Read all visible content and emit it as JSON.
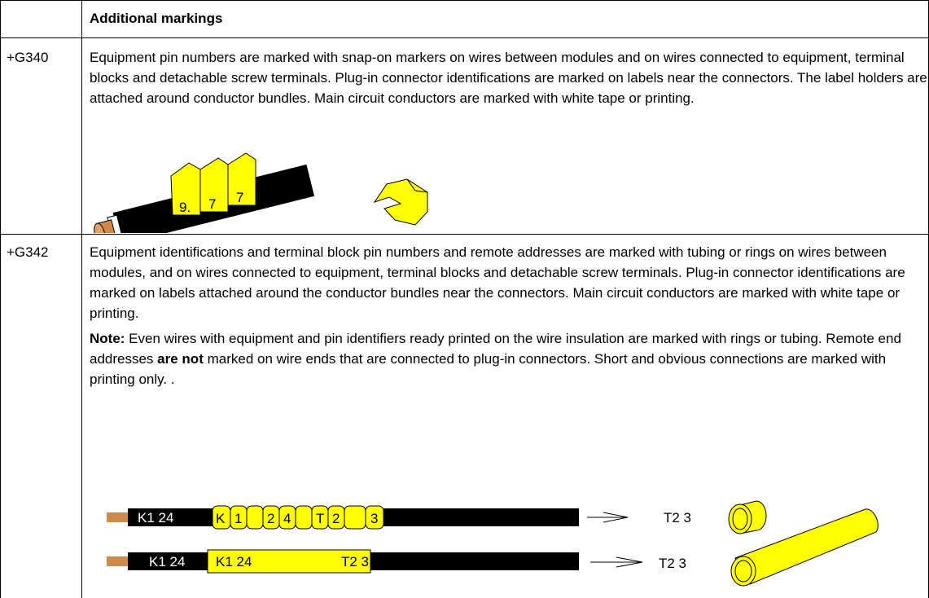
{
  "header": {
    "title": "Additional markings"
  },
  "rows": [
    {
      "code": "+G340",
      "text": "Equipment pin numbers are marked with snap-on markers on wires between modules and on wires connected to equipment, terminal blocks and detachable screw terminals. Plug-in connector identifications are marked on labels near the connectors. The label holders are attached around conductor bundles. Main circuit conductors are marked with white tape or printing.",
      "figure": {
        "markers": [
          "9.",
          "7",
          "7"
        ]
      }
    },
    {
      "code": "+G342",
      "text": "Equipment identifications and terminal block pin numbers and remote addresses are marked with tubing or rings on wires between modules, and on wires connected to equipment, terminal blocks and detachable screw terminals. Plug-in connector identifications are marked on labels attached around the conductor bundles near the connectors. Main circuit conductors are marked with white tape or printing.",
      "note": [
        "Note:",
        " Even wires with equipment and pin identifiers ready printed on the wire insulation are marked with rings or tubing. Remote end addresses ",
        "are not",
        " marked on wire ends that are connected to plug-in connectors. Short and obvious connections are marked with printing only. ."
      ],
      "figure": {
        "ring_wire": {
          "wire_label": "K1 24",
          "rings": [
            "K",
            "1",
            "2",
            "4",
            "T",
            "2",
            "3"
          ],
          "remote": "T2 3"
        },
        "tube_wire": {
          "wire_label": "K1 24",
          "tube_start": "K1 24",
          "tube_end": "T2 3",
          "remote": "T2 3"
        }
      }
    }
  ]
}
